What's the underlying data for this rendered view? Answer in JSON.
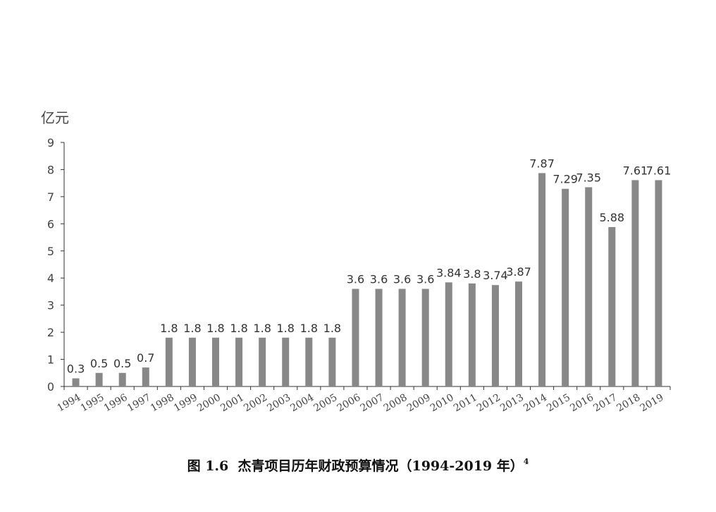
{
  "chart_data": {
    "type": "bar",
    "unit_label": "亿元",
    "categories": [
      "1994",
      "1995",
      "1996",
      "1997",
      "1998",
      "1999",
      "2000",
      "2001",
      "2002",
      "2003",
      "2004",
      "2005",
      "2006",
      "2007",
      "2008",
      "2009",
      "2010",
      "2011",
      "2012",
      "2013",
      "2014",
      "2015",
      "2016",
      "2017",
      "2018",
      "2019"
    ],
    "values": [
      0.3,
      0.5,
      0.5,
      0.7,
      1.8,
      1.8,
      1.8,
      1.8,
      1.8,
      1.8,
      1.8,
      1.8,
      3.6,
      3.6,
      3.6,
      3.6,
      3.84,
      3.8,
      3.74,
      3.87,
      7.87,
      7.29,
      7.35,
      5.88,
      7.61,
      7.61
    ],
    "data_labels": [
      "0.3",
      "0.5",
      "0.5",
      "0.7",
      "1.8",
      "1.8",
      "1.8",
      "1.8",
      "1.8",
      "1.8",
      "1.8",
      "1.8",
      "3.6",
      "3.6",
      "3.6",
      "3.6",
      "3.84",
      "3.8",
      "3.74",
      "3.87",
      "7.87",
      "7.29",
      "7.35",
      "5.88",
      "7.61",
      "7.61"
    ],
    "ylim": [
      0,
      9
    ],
    "yticks": [
      "0",
      "1",
      "2",
      "3",
      "4",
      "5",
      "6",
      "7",
      "8",
      "9"
    ],
    "grid": false,
    "bar_color": "#888888",
    "axis_color": "#333333"
  },
  "caption": {
    "prefix": "图 1.6",
    "title": "杰青项目历年财政预算情况（1994-2019 年）",
    "footnote": "4"
  }
}
